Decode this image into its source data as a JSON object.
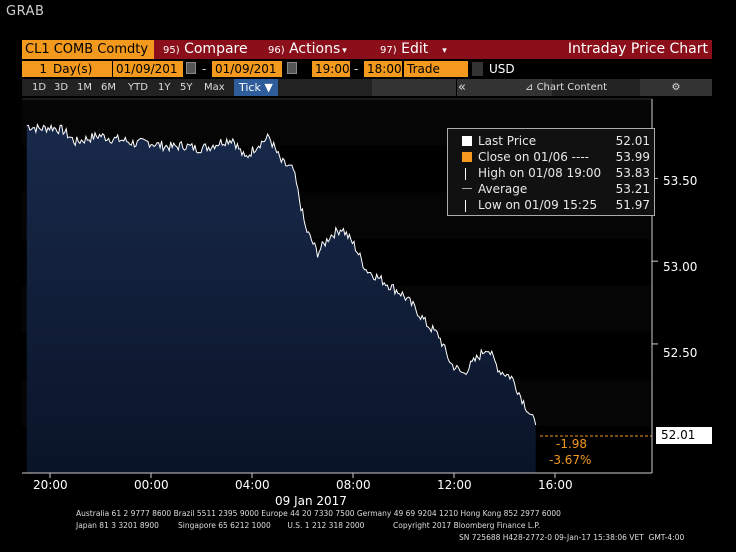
{
  "header": {
    "grab": "GRAB"
  },
  "toolbar1": {
    "ticker": "CL1 COMB Comdty",
    "compare_num": "95)",
    "compare_label": "Compare",
    "actions_num": "96)",
    "actions_label": "Actions",
    "edit_num": "97)",
    "edit_label": "Edit",
    "title": "Intraday Price Chart"
  },
  "toolbar2": {
    "period_num": "1",
    "period_unit": "Day(s)",
    "start_date": "01/09/201",
    "end_date": "01/09/201",
    "start_time": "19:00",
    "end_time": "18:00",
    "field": "Trade",
    "currency": "USD"
  },
  "toolbar3": {
    "ranges": [
      "1D",
      "3D",
      "1M",
      "6M",
      "YTD",
      "1Y",
      "5Y",
      "Max"
    ],
    "tick_label": "Tick",
    "chart_content_label": "Chart Content"
  },
  "legend": {
    "rows": [
      {
        "label": "Last Price",
        "value": "52.01",
        "color": "#ffffff"
      },
      {
        "label": "Close on 01/06 ----",
        "value": "53.99",
        "color": "#f39a1e"
      },
      {
        "label": "High on 01/08 19:00",
        "value": "53.83",
        "color": "#ffffff"
      },
      {
        "label": "Average",
        "value": "53.21",
        "color": "#ffffff"
      },
      {
        "label": "Low on 01/09 15:25",
        "value": "51.97",
        "color": "#ffffff"
      }
    ]
  },
  "chart_data": {
    "type": "area",
    "title": "",
    "xlabel": "09 Jan 2017",
    "ylabel": "",
    "x_ticks": [
      "20:00",
      "00:00",
      "04:00",
      "08:00",
      "12:00",
      "16:00"
    ],
    "y_ticks": [
      "53.50",
      "53.00",
      "52.50"
    ],
    "ylim": [
      51.72,
      53.98
    ],
    "last_price_label": "52.01",
    "change_abs": "-1.98",
    "change_pct": "-3.67%",
    "series": [
      {
        "name": "Last Price",
        "x_hours": [
          0,
          0.5,
          1,
          1.5,
          2,
          2.5,
          3,
          3.5,
          4,
          4.5,
          5,
          5.5,
          6,
          6.5,
          7,
          7.5,
          8,
          8.5,
          9,
          9.5,
          10,
          10.5,
          11,
          11.5,
          12,
          12.5,
          13,
          13.5,
          14,
          14.5,
          15,
          15.5,
          16,
          16.5,
          17,
          17.5,
          18,
          18.5,
          19,
          19.5,
          20,
          20.5,
          21
        ],
        "values": [
          53.82,
          53.8,
          53.81,
          53.79,
          53.72,
          53.74,
          53.76,
          53.74,
          53.73,
          53.71,
          53.72,
          53.7,
          53.69,
          53.7,
          53.68,
          53.69,
          53.72,
          53.74,
          53.62,
          53.7,
          53.75,
          53.6,
          53.55,
          53.2,
          53.05,
          53.15,
          53.2,
          53.1,
          52.95,
          52.9,
          52.85,
          52.8,
          52.72,
          52.62,
          52.55,
          52.38,
          52.32,
          52.4,
          52.48,
          52.34,
          52.3,
          52.15,
          52.01
        ]
      }
    ],
    "close_line": 53.99,
    "grid": false
  },
  "footer": {
    "line1": "Australia 61 2 9777 8600 Brazil 5511 2395 9000 Europe 44 20 7330 7500 Germany 49 69 9204 1210 Hong Kong 852 2977 6000",
    "line2": "Japan 81 3 3201 8900        Singapore 65 6212 1000       U.S. 1 212 318 2000            Copyright 2017 Bloomberg Finance L.P.",
    "line3": "SN 725688 H428-2772-0 09-Jan-17 15:38:06 VET  GMT-4:00"
  }
}
